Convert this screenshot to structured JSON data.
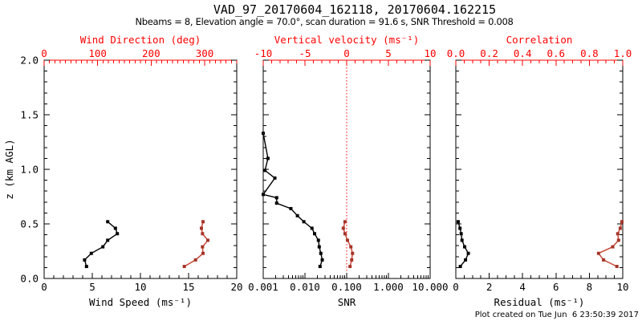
{
  "header": {
    "title": "VAD_97_20170604_162118, 20170604.162215",
    "subtitle": "Nbeams = 8, Elevation angle = 70.0°, scan duration = 91.6 s, SNR Threshold = 0.008"
  },
  "footer": {
    "created": "Plot created on Tue Jun  6 23:50:39 2017"
  },
  "colors": {
    "axis_red": "#ff0000",
    "data_black": "#000000",
    "data_red_line": "#c5412f",
    "data_red_marker": "#a63529",
    "background": "#ffffff",
    "text": "#000000"
  },
  "chart_data": {
    "type": "scatter",
    "description": "VAD wind profile retrieval: three panels sharing vertical axis z (km AGL)",
    "y_axis": {
      "label": "z (km AGL)",
      "min": 0,
      "max": 2,
      "major_values": [
        0,
        0.5,
        1,
        1.5,
        2
      ],
      "major_labels": [
        "0.0",
        "0.5",
        "1.0",
        "1.5",
        "2.0"
      ],
      "minor_step": 0.1
    },
    "panels": [
      {
        "x_bottom": {
          "label": "Wind Speed (ms⁻¹)",
          "scale": "linear",
          "min": 0,
          "max": 20,
          "major_values": [
            0,
            5,
            10,
            15,
            20
          ],
          "major_labels": [
            "0",
            "5",
            "10",
            "15",
            "20"
          ],
          "minor_step": 1
        },
        "x_top": {
          "label": "Wind Direction (deg)",
          "scale": "linear",
          "min": 0,
          "max": 360,
          "major_values": [
            0,
            100,
            200,
            300
          ],
          "major_labels": [
            "0",
            "100",
            "200",
            "300"
          ],
          "minor_step": 10
        },
        "series": [
          {
            "name": "wind-speed",
            "axis": "bottom",
            "color": "black",
            "z": [
              0.52,
              0.46,
              0.41,
              0.35,
              0.29,
              0.23,
              0.17,
              0.11
            ],
            "values": [
              6.6,
              7.4,
              7.6,
              6.6,
              6.1,
              4.9,
              4.2,
              4.4
            ]
          },
          {
            "name": "wind-direction",
            "axis": "top",
            "color": "red",
            "z": [
              0.52,
              0.46,
              0.41,
              0.35,
              0.29,
              0.23,
              0.17,
              0.11
            ],
            "values": [
              297,
              294,
              296,
              306,
              296,
              297,
              283,
              262
            ]
          }
        ]
      },
      {
        "x_bottom": {
          "label": "SNR",
          "scale": "log",
          "min": 0.001,
          "max": 10,
          "major_values": [
            0.001,
            0.01,
            0.1,
            1,
            10
          ],
          "major_labels": [
            "0.001",
            "0.010",
            "0.100",
            "1.000",
            "10.000"
          ]
        },
        "x_top": {
          "label": "Vertical velocity (ms⁻¹)",
          "scale": "linear",
          "min": -10,
          "max": 10,
          "major_values": [
            -10,
            -5,
            0,
            5,
            10
          ],
          "major_labels": [
            "-10",
            "-5",
            "0",
            "5",
            "10"
          ],
          "minor_step": 1
        },
        "ref_line": {
          "axis": "top",
          "value": 0,
          "style": "dotted",
          "color": "red"
        },
        "series": [
          {
            "name": "snr",
            "axis": "bottom",
            "color": "black",
            "z": [
              1.33,
              1.1,
              0.99,
              0.92,
              0.77,
              0.74,
              0.69,
              0.64,
              0.575,
              0.52,
              0.46,
              0.41,
              0.35,
              0.29,
              0.23,
              0.17,
              0.11
            ],
            "values": [
              0.001,
              0.0013,
              0.0011,
              0.0019,
              0.001,
              0.0021,
              0.0021,
              0.0046,
              0.0066,
              0.0094,
              0.0147,
              0.017,
              0.021,
              0.022,
              0.024,
              0.026,
              0.023
            ]
          },
          {
            "name": "vertical-velocity",
            "axis": "top",
            "color": "red",
            "z": [
              0.52,
              0.46,
              0.41,
              0.35,
              0.29,
              0.23,
              0.17,
              0.11
            ],
            "values": [
              -0.2,
              -0.4,
              -0.2,
              0.1,
              0.5,
              0.7,
              0.6,
              0.4
            ]
          }
        ]
      },
      {
        "x_bottom": {
          "label": "Residual (ms⁻¹)",
          "scale": "linear",
          "min": 0,
          "max": 10,
          "major_values": [
            0,
            2,
            4,
            6,
            8,
            10
          ],
          "major_labels": [
            "0",
            "2",
            "4",
            "6",
            "8",
            "10"
          ],
          "minor_step": 0.5
        },
        "x_top": {
          "label": "Correlation",
          "scale": "linear",
          "min": 0,
          "max": 1,
          "major_values": [
            0,
            0.2,
            0.4,
            0.6,
            0.8,
            1
          ],
          "major_labels": [
            "0.0",
            "0.2",
            "0.4",
            "0.6",
            "0.8",
            "1.0"
          ],
          "minor_step": 0.05
        },
        "series": [
          {
            "name": "residual",
            "axis": "bottom",
            "color": "black",
            "z": [
              0.52,
              0.46,
              0.41,
              0.35,
              0.29,
              0.23,
              0.17,
              0.11
            ],
            "values": [
              0.14,
              0.25,
              0.32,
              0.37,
              0.53,
              0.75,
              0.58,
              0.27
            ]
          },
          {
            "name": "correlation",
            "axis": "top",
            "color": "red",
            "z": [
              0.52,
              0.46,
              0.41,
              0.35,
              0.29,
              0.23,
              0.17,
              0.11
            ],
            "values": [
              0.995,
              0.985,
              0.97,
              0.975,
              0.94,
              0.855,
              0.885,
              0.965
            ]
          }
        ]
      }
    ]
  }
}
